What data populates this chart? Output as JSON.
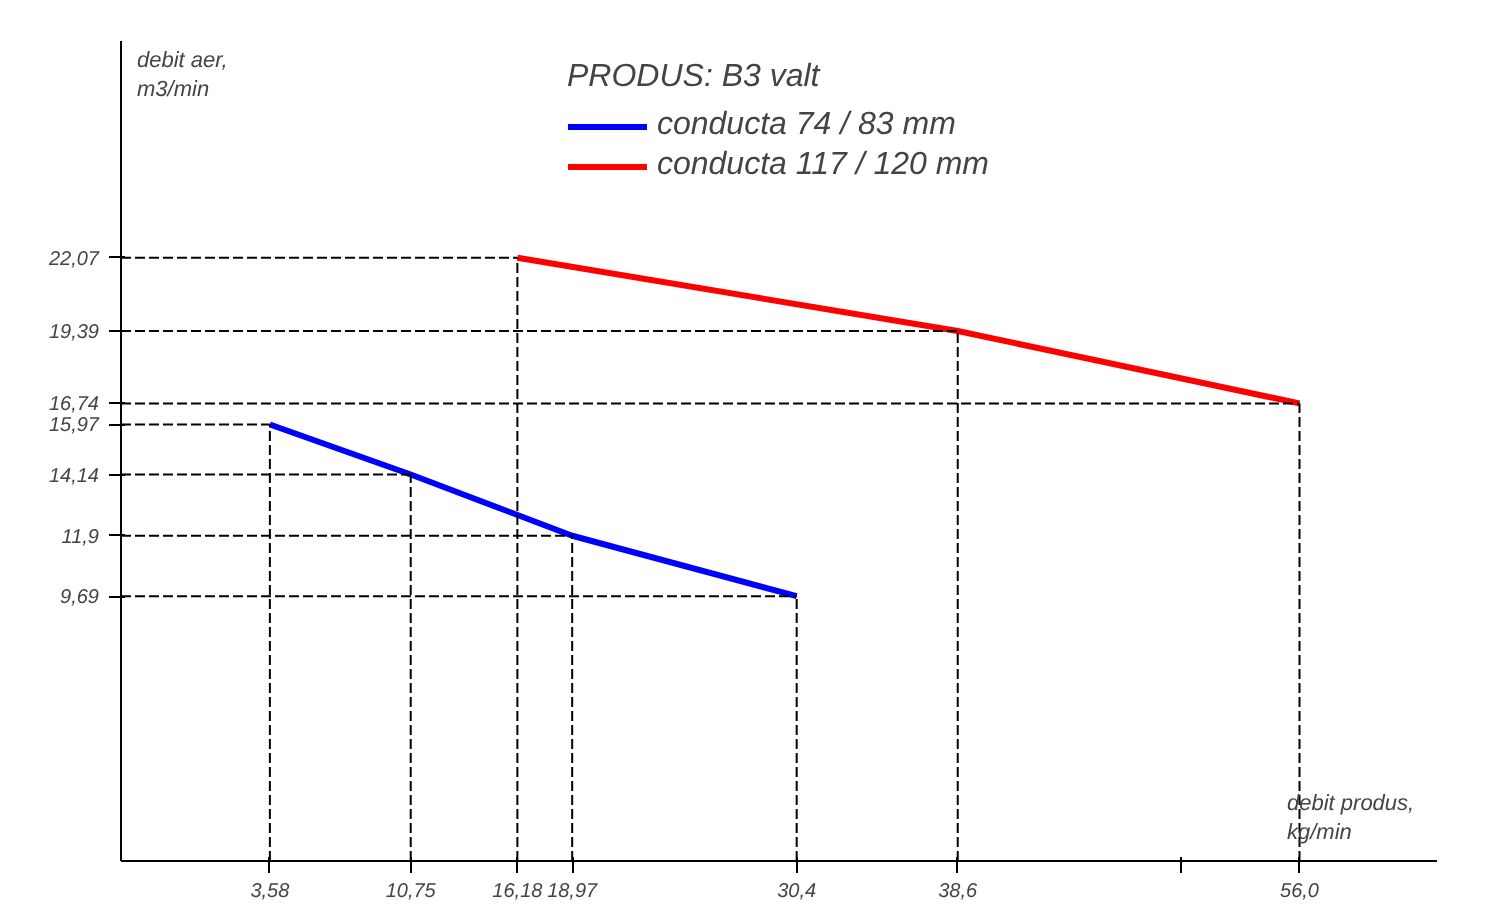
{
  "chart_data": {
    "type": "line",
    "xlabel": "debit produs,\nkg/min",
    "ylabel": "debit aer,\nm3/min",
    "legend_title": "PRODUS: B3 valt",
    "legend": "top",
    "grid": false,
    "line_style": "solid",
    "marker": "none",
    "xlim": [
      -4,
      63
    ],
    "ylim": [
      0,
      30
    ],
    "ref_lines": [
      {
        "axis": "x",
        "value": 3.58,
        "color": "#000000",
        "line_style": "dashed"
      },
      {
        "axis": "x",
        "value": 10.75,
        "color": "#000000",
        "line_style": "dashed"
      },
      {
        "axis": "x",
        "value": 16.18,
        "color": "#000000",
        "line_style": "dashed"
      },
      {
        "axis": "x",
        "value": 18.97,
        "color": "#000000",
        "line_style": "dashed"
      },
      {
        "axis": "x",
        "value": 30.4,
        "color": "#000000",
        "line_style": "dashed"
      },
      {
        "axis": "x",
        "value": 38.6,
        "color": "#000000",
        "line_style": "dashed"
      },
      {
        "axis": "x",
        "value": 56.0,
        "color": "#000000",
        "line_style": "dashed"
      },
      {
        "axis": "y",
        "value": 15.97,
        "color": "#000000",
        "line_style": "dashed"
      },
      {
        "axis": "y",
        "value": 14.14,
        "color": "#000000",
        "line_style": "dashed"
      },
      {
        "axis": "y",
        "value": 11.9,
        "color": "#000000",
        "line_style": "dashed"
      },
      {
        "axis": "y",
        "value": 9.69,
        "color": "#000000",
        "line_style": "dashed"
      },
      {
        "axis": "y",
        "value": 22.07,
        "color": "#000000",
        "line_style": "dashed"
      },
      {
        "axis": "y",
        "value": 19.39,
        "color": "#000000",
        "line_style": "dashed"
      },
      {
        "axis": "y",
        "value": 16.74,
        "color": "#000000",
        "line_style": "dashed"
      }
    ],
    "xticks": [
      {
        "value": 3.58,
        "label": "3,58"
      },
      {
        "value": 10.75,
        "label": "10,75"
      },
      {
        "value": 16.18,
        "label": "16,18"
      },
      {
        "value": 18.97,
        "label": "18,97"
      },
      {
        "value": 30.4,
        "label": "30,4"
      },
      {
        "value": 38.6,
        "label": "38,6"
      },
      {
        "value": 50,
        "label": null
      },
      {
        "value": 56.0,
        "label": "56,0"
      }
    ],
    "yticks": [
      {
        "value": 9.69,
        "label": "9,69"
      },
      {
        "value": 11.9,
        "label": "11,9"
      },
      {
        "value": 14.14,
        "label": "14,14"
      },
      {
        "value": 15.97,
        "label": "15,97"
      },
      {
        "value": 16.74,
        "label": "16,74"
      },
      {
        "value": 19.39,
        "label": "19,39"
      },
      {
        "value": 22.07,
        "label": "22,07"
      }
    ],
    "series": [
      {
        "name": "conducta 74 / 83 mm",
        "color": "#0000ff",
        "x": [
          3.58,
          10.75,
          18.97,
          30.4
        ],
        "values": [
          15.97,
          14.14,
          11.9,
          9.69
        ]
      },
      {
        "name": "conducta 117 / 120 mm",
        "color": "#ff0000",
        "x": [
          16.18,
          38.6,
          56.0
        ],
        "values": [
          22.07,
          19.39,
          16.74
        ]
      }
    ]
  }
}
